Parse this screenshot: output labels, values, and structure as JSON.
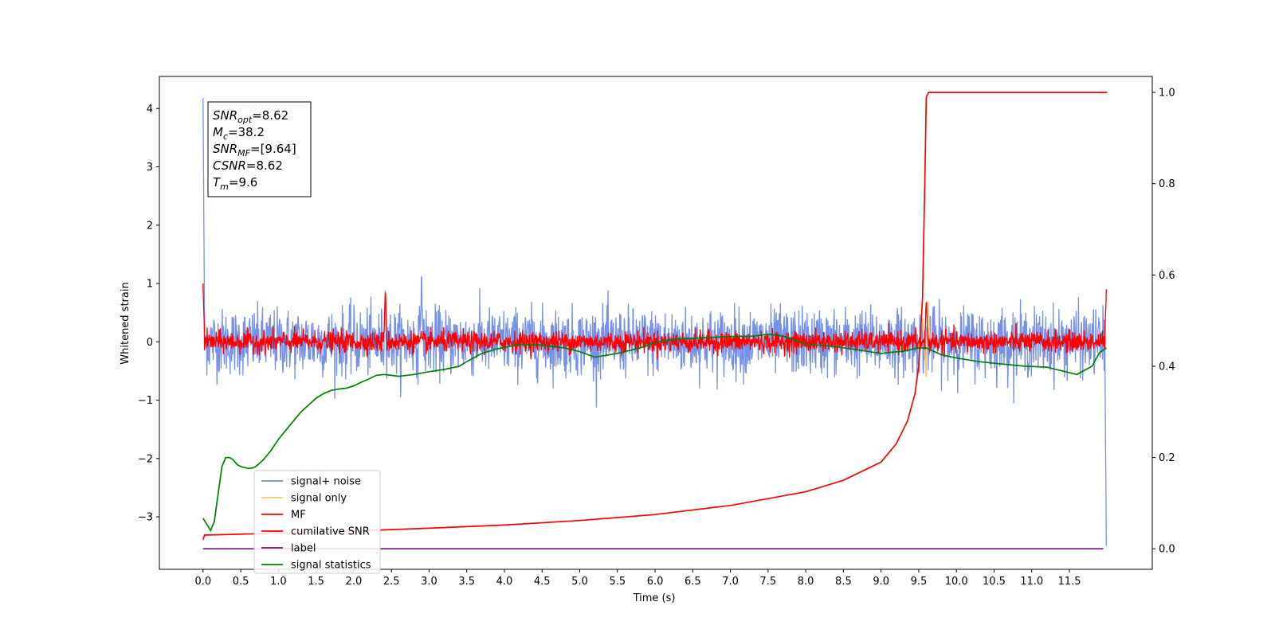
{
  "chart_data": {
    "type": "line",
    "xlabel": "Time (s)",
    "ylabel": "Whitened strain",
    "xlim": [
      -0.58,
      12.6
    ],
    "ylim": [
      -3.9,
      4.55
    ],
    "y2lim": [
      -0.045,
      1.035
    ],
    "x_ticks": [
      "0.0",
      "0.5",
      "1.0",
      "1.5",
      "2.0",
      "2.5",
      "3.0",
      "3.5",
      "4.0",
      "4.5",
      "5.0",
      "5.5",
      "6.0",
      "6.5",
      "7.0",
      "7.5",
      "8.0",
      "8.5",
      "9.0",
      "9.5",
      "10.0",
      "10.5",
      "11.0",
      "11.5"
    ],
    "y_ticks": [
      "4",
      "3",
      "2",
      "1",
      "0",
      "−1",
      "−2",
      "−3"
    ],
    "y2_ticks": [
      "1.0",
      "0.8",
      "0.6",
      "0.4",
      "0.2",
      "0.0"
    ],
    "annotation": {
      "lines": [
        {
          "base": "SNR",
          "sub": "opt",
          "value": "=8.62"
        },
        {
          "base": "M",
          "sub": "c",
          "value": "=38.2"
        },
        {
          "base": "SNR",
          "sub": "MF",
          "value": "=[9.64]"
        },
        {
          "base": "CSNR",
          "sub": "",
          "value": "=8.62"
        },
        {
          "base": "T",
          "sub": "m",
          "value": "=9.6"
        }
      ]
    },
    "series": [
      {
        "name": "signal+ noise",
        "color": "#6f8be6",
        "axis": "left",
        "style": "noise",
        "amplitude": 0.28,
        "x_range": [
          0.0,
          11.99
        ],
        "spikes": [
          [
            0.0,
            4.18
          ],
          [
            2.42,
            0.95
          ],
          [
            2.9,
            1.25
          ],
          [
            11.99,
            -3.5
          ]
        ]
      },
      {
        "name": "signal only",
        "color": "#f5c878",
        "axis": "left",
        "style": "burst",
        "x": [
          9.5,
          9.55,
          9.6,
          9.62,
          9.65
        ],
        "y": [
          0.0,
          0.4,
          -0.6,
          0.7,
          0.0
        ]
      },
      {
        "name": "MF",
        "color": "#ff0000",
        "axis": "left",
        "style": "noise",
        "amplitude": 0.09,
        "x_range": [
          0.0,
          11.99
        ],
        "spikes": [
          [
            0.0,
            1.0
          ],
          [
            2.42,
            0.95
          ],
          [
            9.6,
            0.75
          ],
          [
            11.99,
            0.9
          ]
        ]
      },
      {
        "name": "cumilative SNR",
        "color": "#ff0000",
        "axis": "right",
        "x": [
          0.0,
          0.02,
          1.0,
          2.0,
          3.0,
          4.0,
          5.0,
          6.0,
          7.0,
          8.0,
          8.5,
          9.0,
          9.2,
          9.35,
          9.45,
          9.5,
          9.55,
          9.58,
          9.6,
          9.63,
          10.0,
          11.0,
          12.0
        ],
        "y": [
          0.02,
          0.03,
          0.034,
          0.039,
          0.045,
          0.052,
          0.062,
          0.075,
          0.095,
          0.125,
          0.15,
          0.19,
          0.23,
          0.28,
          0.34,
          0.4,
          0.55,
          0.8,
          0.99,
          1.0,
          1.0,
          1.0,
          1.0
        ]
      },
      {
        "name": "label",
        "color": "#7b0f7b",
        "axis": "right",
        "x": [
          0.0,
          11.95
        ],
        "y": [
          0.0,
          0.0
        ]
      },
      {
        "name": "signal statistics",
        "color": "#008000",
        "axis": "right",
        "x": [
          0.0,
          0.1,
          0.15,
          0.2,
          0.25,
          0.3,
          0.35,
          0.4,
          0.45,
          0.5,
          0.55,
          0.6,
          0.65,
          0.7,
          0.8,
          0.9,
          1.0,
          1.1,
          1.2,
          1.3,
          1.4,
          1.5,
          1.6,
          1.7,
          1.8,
          1.9,
          2.0,
          2.1,
          2.2,
          2.3,
          2.4,
          2.5,
          2.6,
          2.8,
          3.0,
          3.2,
          3.4,
          3.5,
          3.7,
          3.9,
          4.2,
          4.5,
          4.8,
          5.0,
          5.2,
          5.5,
          5.8,
          6.0,
          6.3,
          6.6,
          7.0,
          7.3,
          7.5,
          7.7,
          8.0,
          8.3,
          8.6,
          9.0,
          9.1,
          9.3,
          9.5,
          9.6,
          9.8,
          10.0,
          10.3,
          10.6,
          10.9,
          11.2,
          11.4,
          11.6,
          11.8,
          11.9,
          11.99
        ],
        "y": [
          0.067,
          0.04,
          0.06,
          0.12,
          0.18,
          0.2,
          0.2,
          0.195,
          0.185,
          0.18,
          0.178,
          0.176,
          0.177,
          0.18,
          0.195,
          0.215,
          0.24,
          0.26,
          0.28,
          0.3,
          0.315,
          0.33,
          0.34,
          0.347,
          0.35,
          0.352,
          0.357,
          0.365,
          0.372,
          0.38,
          0.382,
          0.38,
          0.378,
          0.382,
          0.388,
          0.393,
          0.4,
          0.41,
          0.428,
          0.438,
          0.448,
          0.446,
          0.44,
          0.432,
          0.42,
          0.428,
          0.44,
          0.452,
          0.46,
          0.462,
          0.465,
          0.466,
          0.47,
          0.466,
          0.448,
          0.445,
          0.438,
          0.428,
          0.43,
          0.433,
          0.44,
          0.44,
          0.425,
          0.418,
          0.41,
          0.405,
          0.4,
          0.398,
          0.39,
          0.382,
          0.4,
          0.43,
          0.44
        ]
      }
    ],
    "legend_position": "lower-left"
  }
}
